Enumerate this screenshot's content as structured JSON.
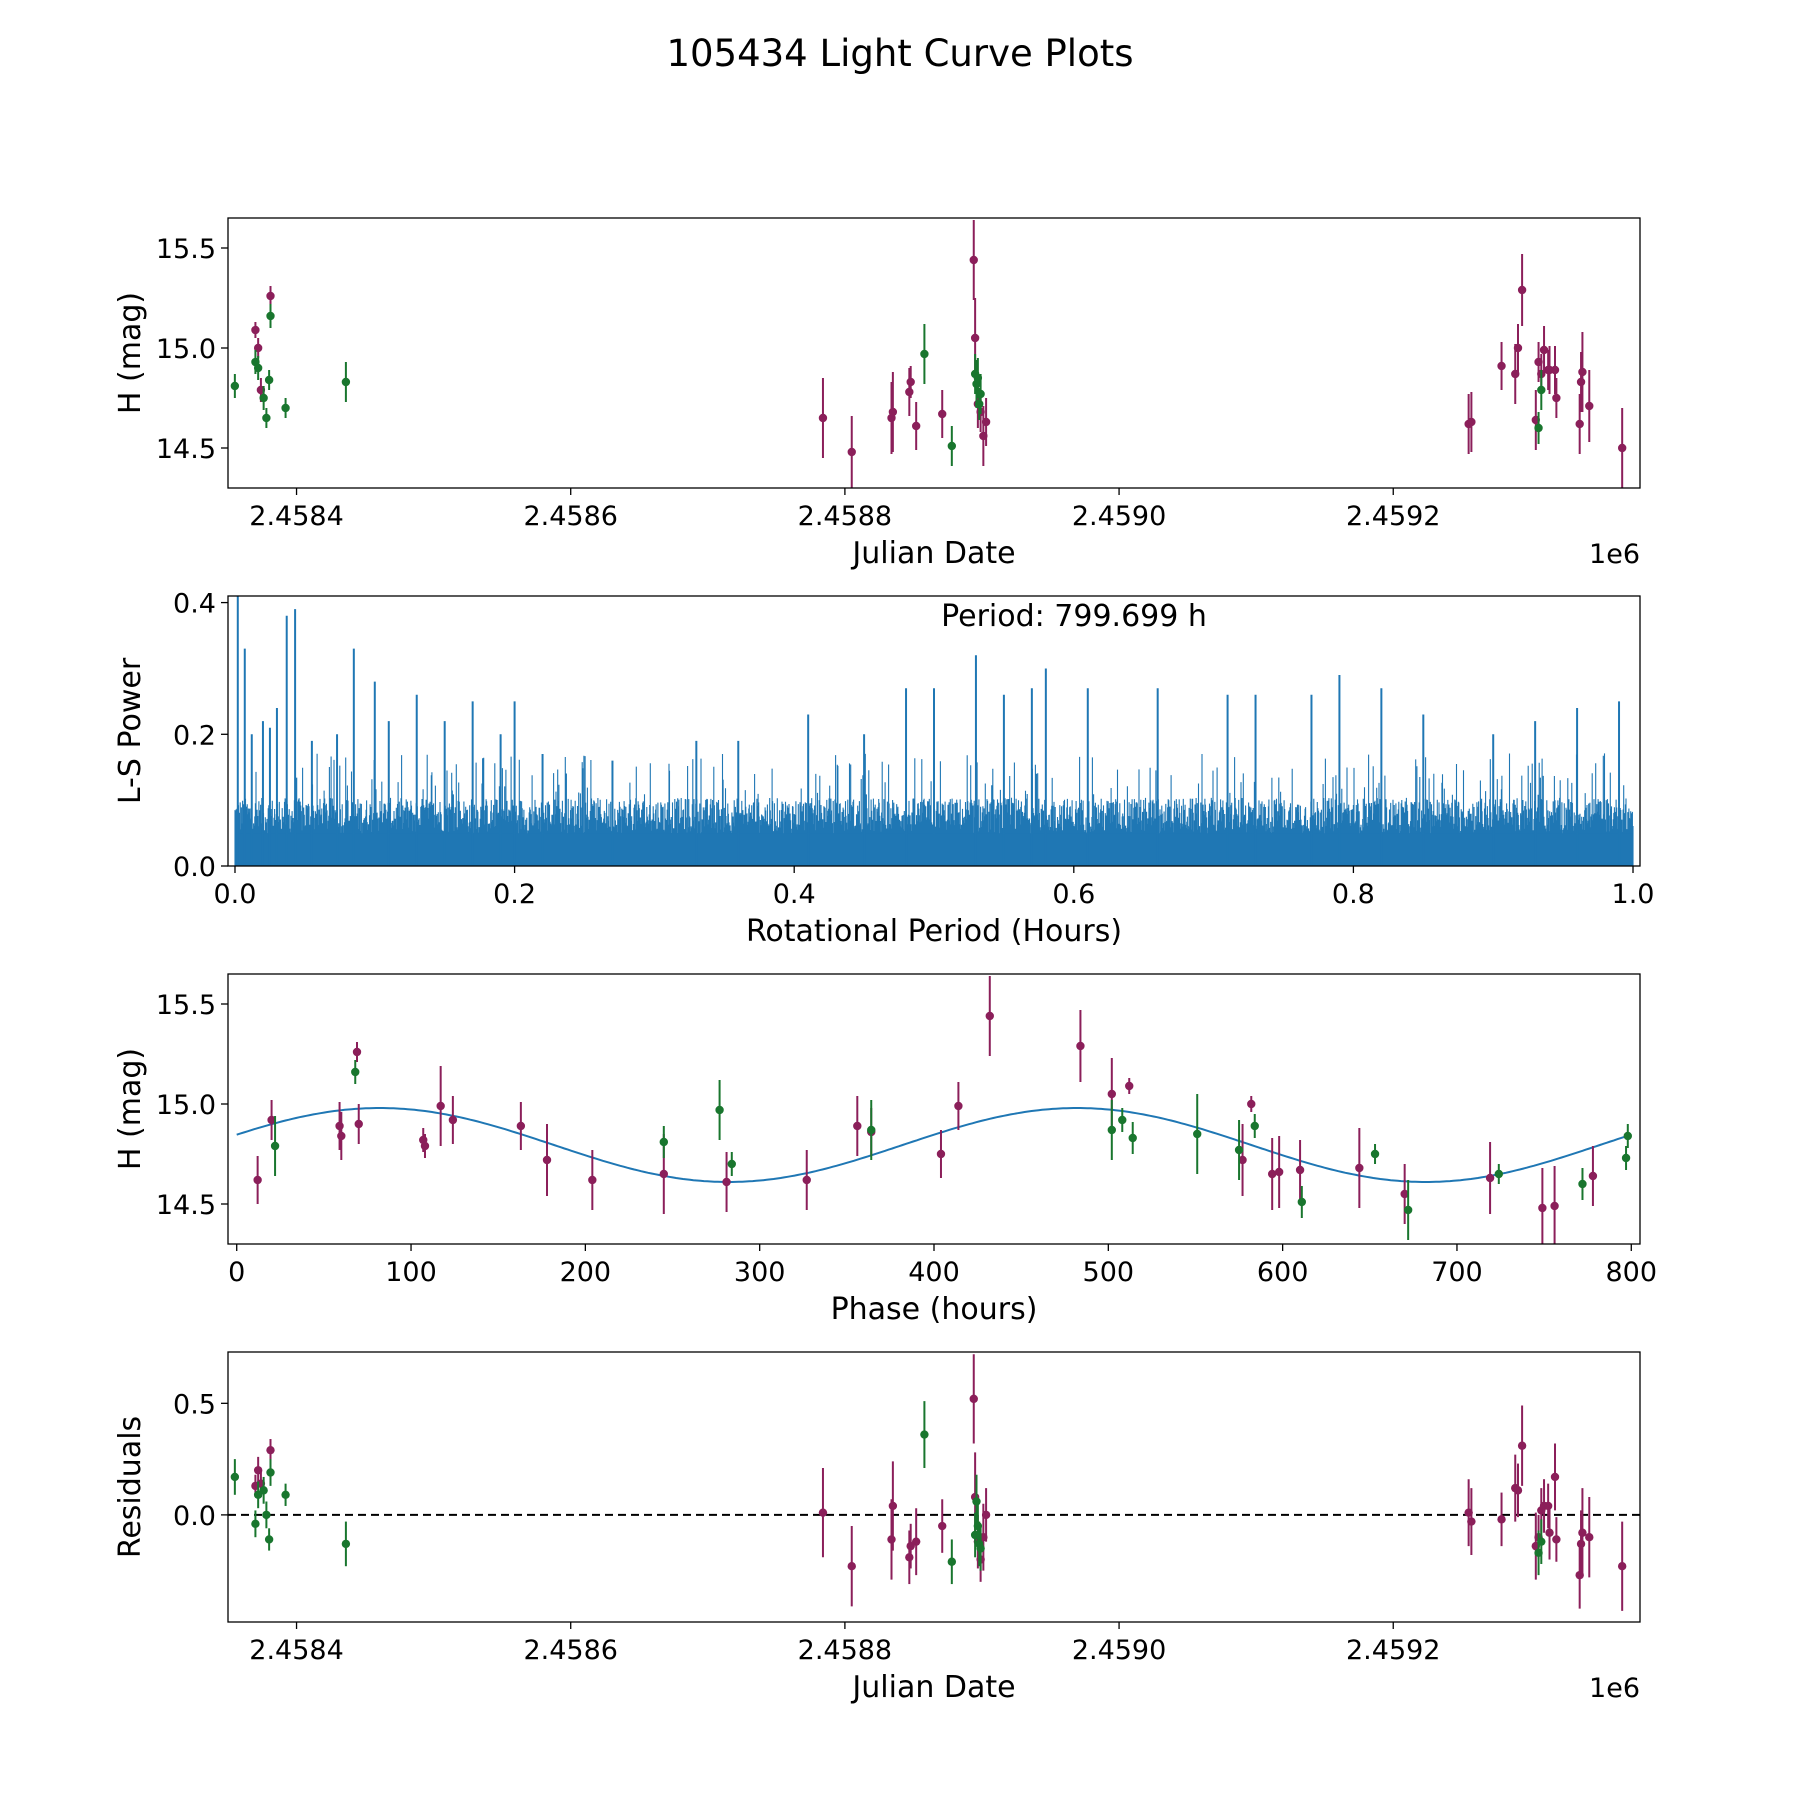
{
  "figure_title": "105434 Light Curve Plots",
  "colors": {
    "purple": "#8b1f5a",
    "green": "#19762e",
    "blue": "#1f77b4",
    "frame": "#000000"
  },
  "chart_data": [
    {
      "id": "lightcurve",
      "type": "scatter",
      "title": "",
      "xlabel": "Julian Date",
      "ylabel": "H (mag)",
      "offset_label": "1e6",
      "xlim": [
        2.45835,
        2.45938
      ],
      "ylim": [
        14.3,
        15.65
      ],
      "xticks": [
        2.4584,
        2.4586,
        2.4588,
        2.459,
        2.4592
      ],
      "xticklabels": [
        "2.4584",
        "2.4586",
        "2.4588",
        "2.4590",
        "2.4592"
      ],
      "yticks": [
        14.5,
        15.0,
        15.5
      ],
      "yticklabels": [
        "14.5",
        "15.0",
        "15.5"
      ],
      "series": [
        {
          "name": "purple",
          "color": "#8b1f5a",
          "x": [
            2.45837,
            2.458372,
            2.458374,
            2.458381,
            2.458784,
            2.458805,
            2.458834,
            2.458835,
            2.458847,
            2.458848,
            2.458852,
            2.458871,
            2.458894,
            2.458895,
            2.458897,
            2.458899,
            2.458901,
            2.458903,
            2.459255,
            2.459257,
            2.459279,
            2.459289,
            2.459291,
            2.459294,
            2.459304,
            2.459306,
            2.459308,
            2.45931,
            2.459313,
            2.459314,
            2.459318,
            2.459319,
            2.459336,
            2.459337,
            2.459338,
            2.459343,
            2.459367
          ],
          "y": [
            15.09,
            15.0,
            14.79,
            15.26,
            14.65,
            14.48,
            14.65,
            14.68,
            14.78,
            14.83,
            14.61,
            14.67,
            15.44,
            15.05,
            14.72,
            14.68,
            14.56,
            14.63,
            14.62,
            14.63,
            14.91,
            14.87,
            15.0,
            15.29,
            14.64,
            14.93,
            14.87,
            14.99,
            14.89,
            14.89,
            14.89,
            14.75,
            14.62,
            14.83,
            14.88,
            14.71,
            14.5
          ],
          "err": [
            0.04,
            0.05,
            0.06,
            0.05,
            0.2,
            0.18,
            0.18,
            0.2,
            0.12,
            0.08,
            0.12,
            0.12,
            0.2,
            0.2,
            0.12,
            0.1,
            0.15,
            0.12,
            0.15,
            0.15,
            0.12,
            0.15,
            0.12,
            0.18,
            0.15,
            0.1,
            0.1,
            0.12,
            0.1,
            0.12,
            0.12,
            0.1,
            0.15,
            0.15,
            0.2,
            0.18,
            0.2
          ]
        },
        {
          "name": "green",
          "color": "#19762e",
          "x": [
            2.458355,
            2.45837,
            2.458372,
            2.458376,
            2.458378,
            2.45838,
            2.458381,
            2.458392,
            2.458436,
            2.458858,
            2.458878,
            2.458895,
            2.458896,
            2.458897,
            2.458898,
            2.458899,
            2.459306,
            2.459308
          ],
          "y": [
            14.81,
            14.93,
            14.9,
            14.75,
            14.65,
            14.84,
            15.16,
            14.7,
            14.83,
            14.97,
            14.51,
            14.87,
            14.82,
            14.85,
            14.72,
            14.77,
            14.6,
            14.79
          ],
          "err": [
            0.06,
            0.06,
            0.06,
            0.06,
            0.05,
            0.05,
            0.06,
            0.05,
            0.1,
            0.15,
            0.1,
            0.1,
            0.12,
            0.1,
            0.08,
            0.1,
            0.08,
            0.1
          ]
        }
      ]
    },
    {
      "id": "periodogram",
      "type": "line",
      "title": "",
      "annotation": "Period: 799.699 h",
      "xlabel": "Rotational Period (Hours)",
      "ylabel": "L-S Power",
      "xlim": [
        -0.005,
        1.005
      ],
      "ylim": [
        0.0,
        0.41
      ],
      "xticks": [
        0.0,
        0.2,
        0.4,
        0.6,
        0.8,
        1.0
      ],
      "xticklabels": [
        "0.0",
        "0.2",
        "0.4",
        "0.6",
        "0.8",
        "1.0"
      ],
      "yticks": [
        0.0,
        0.2,
        0.4
      ],
      "yticklabels": [
        "0.0",
        "0.2",
        "0.4"
      ],
      "series": [
        {
          "name": "L-S power",
          "color": "#1f77b4",
          "x_range": [
            0.0,
            1.0
          ],
          "baseline_power": 0.09,
          "peaks": [
            [
              0.002,
              0.41
            ],
            [
              0.007,
              0.33
            ],
            [
              0.012,
              0.2
            ],
            [
              0.02,
              0.22
            ],
            [
              0.025,
              0.21
            ],
            [
              0.03,
              0.24
            ],
            [
              0.037,
              0.38
            ],
            [
              0.043,
              0.39
            ],
            [
              0.055,
              0.19
            ],
            [
              0.073,
              0.2
            ],
            [
              0.085,
              0.33
            ],
            [
              0.1,
              0.28
            ],
            [
              0.11,
              0.22
            ],
            [
              0.13,
              0.26
            ],
            [
              0.15,
              0.22
            ],
            [
              0.17,
              0.25
            ],
            [
              0.19,
              0.2
            ],
            [
              0.2,
              0.25
            ],
            [
              0.22,
              0.17
            ],
            [
              0.27,
              0.16
            ],
            [
              0.33,
              0.19
            ],
            [
              0.36,
              0.19
            ],
            [
              0.41,
              0.23
            ],
            [
              0.45,
              0.2
            ],
            [
              0.48,
              0.27
            ],
            [
              0.5,
              0.27
            ],
            [
              0.53,
              0.32
            ],
            [
              0.55,
              0.26
            ],
            [
              0.57,
              0.27
            ],
            [
              0.58,
              0.3
            ],
            [
              0.61,
              0.27
            ],
            [
              0.66,
              0.27
            ],
            [
              0.71,
              0.26
            ],
            [
              0.73,
              0.26
            ],
            [
              0.77,
              0.26
            ],
            [
              0.79,
              0.29
            ],
            [
              0.82,
              0.27
            ],
            [
              0.85,
              0.23
            ],
            [
              0.9,
              0.2
            ],
            [
              0.93,
              0.22
            ],
            [
              0.96,
              0.24
            ],
            [
              0.99,
              0.25
            ]
          ]
        }
      ]
    },
    {
      "id": "phasefold",
      "type": "scatter",
      "title": "",
      "xlabel": "Phase (hours)",
      "ylabel": "H (mag)",
      "xlim": [
        -5,
        805
      ],
      "ylim": [
        14.3,
        15.65
      ],
      "xticks": [
        0,
        100,
        200,
        300,
        400,
        500,
        600,
        700,
        800
      ],
      "xticklabels": [
        "0",
        "100",
        "200",
        "300",
        "400",
        "500",
        "600",
        "700",
        "800"
      ],
      "yticks": [
        14.5,
        15.0,
        15.5
      ],
      "yticklabels": [
        "14.5",
        "15.0",
        "15.5"
      ],
      "fit": {
        "color": "#1f77b4",
        "mean": 14.795,
        "amplitude": 0.185,
        "period_hours": 400,
        "phase_peak_hours": 82
      },
      "series": [
        {
          "name": "purple",
          "color": "#8b1f5a",
          "x": [
            12,
            20,
            59,
            60,
            69,
            70,
            107,
            108,
            117,
            124,
            163,
            178,
            204,
            245,
            281,
            327,
            356,
            364,
            404,
            414,
            432,
            484,
            502,
            512,
            577,
            582,
            594,
            598,
            610,
            644,
            670,
            719,
            749,
            756,
            778
          ],
          "y": [
            14.62,
            14.92,
            14.89,
            14.84,
            15.26,
            14.9,
            14.82,
            14.79,
            14.99,
            14.92,
            14.89,
            14.72,
            14.62,
            14.65,
            14.61,
            14.62,
            14.89,
            14.86,
            14.75,
            14.99,
            15.44,
            15.29,
            15.05,
            15.09,
            14.72,
            15.0,
            14.65,
            14.66,
            14.67,
            14.68,
            14.55,
            14.63,
            14.48,
            14.49,
            14.64
          ],
          "err": [
            0.12,
            0.1,
            0.12,
            0.12,
            0.05,
            0.1,
            0.06,
            0.06,
            0.2,
            0.12,
            0.12,
            0.18,
            0.15,
            0.2,
            0.15,
            0.15,
            0.15,
            0.12,
            0.12,
            0.12,
            0.2,
            0.18,
            0.18,
            0.04,
            0.18,
            0.04,
            0.18,
            0.18,
            0.15,
            0.2,
            0.15,
            0.18,
            0.2,
            0.2,
            0.15
          ]
        },
        {
          "name": "green",
          "color": "#19762e",
          "x": [
            22,
            68,
            245,
            277,
            284,
            364,
            502,
            508,
            514,
            551,
            575,
            584,
            611,
            653,
            672,
            724,
            772,
            797,
            798
          ],
          "y": [
            14.79,
            15.16,
            14.81,
            14.97,
            14.7,
            14.87,
            14.87,
            14.92,
            14.83,
            14.85,
            14.77,
            14.89,
            14.51,
            14.75,
            14.47,
            14.65,
            14.6,
            14.73,
            14.84
          ],
          "err": [
            0.15,
            0.06,
            0.08,
            0.15,
            0.06,
            0.15,
            0.15,
            0.06,
            0.08,
            0.2,
            0.15,
            0.06,
            0.08,
            0.05,
            0.15,
            0.05,
            0.08,
            0.06,
            0.06
          ]
        }
      ]
    },
    {
      "id": "residuals",
      "type": "scatter",
      "title": "",
      "xlabel": "Julian Date",
      "ylabel": "Residuals",
      "offset_label": "1e6",
      "xlim": [
        2.45835,
        2.45938
      ],
      "ylim": [
        -0.48,
        0.73
      ],
      "zero_line": 0.0,
      "xticks": [
        2.4584,
        2.4586,
        2.4588,
        2.459,
        2.4592
      ],
      "xticklabels": [
        "2.4584",
        "2.4586",
        "2.4588",
        "2.4590",
        "2.4592"
      ],
      "yticks": [
        0.0,
        0.5
      ],
      "yticklabels": [
        "0.0",
        "0.5"
      ],
      "series": [
        {
          "name": "purple",
          "color": "#8b1f5a",
          "x": [
            2.45837,
            2.458372,
            2.458374,
            2.458381,
            2.458784,
            2.458805,
            2.458834,
            2.458835,
            2.458847,
            2.458848,
            2.458852,
            2.458871,
            2.458894,
            2.458895,
            2.458897,
            2.458899,
            2.458901,
            2.458903,
            2.459255,
            2.459257,
            2.459279,
            2.459289,
            2.459291,
            2.459294,
            2.459304,
            2.459306,
            2.459308,
            2.45931,
            2.459313,
            2.459314,
            2.459318,
            2.459319,
            2.459336,
            2.459337,
            2.459338,
            2.459343,
            2.459367
          ],
          "y": [
            0.13,
            0.2,
            0.14,
            0.29,
            0.01,
            -0.23,
            -0.11,
            0.04,
            -0.19,
            -0.14,
            -0.12,
            -0.05,
            0.52,
            0.08,
            -0.12,
            -0.2,
            -0.1,
            0.0,
            0.01,
            -0.03,
            -0.02,
            0.12,
            0.11,
            0.31,
            -0.14,
            -0.1,
            0.02,
            0.04,
            0.04,
            -0.08,
            0.17,
            -0.11,
            -0.27,
            -0.13,
            -0.08,
            -0.1,
            -0.23
          ],
          "err": [
            0.05,
            0.06,
            0.06,
            0.05,
            0.2,
            0.18,
            0.18,
            0.2,
            0.12,
            0.1,
            0.15,
            0.12,
            0.2,
            0.2,
            0.12,
            0.1,
            0.15,
            0.12,
            0.15,
            0.15,
            0.12,
            0.15,
            0.12,
            0.18,
            0.15,
            0.1,
            0.1,
            0.12,
            0.1,
            0.12,
            0.15,
            0.1,
            0.15,
            0.15,
            0.2,
            0.18,
            0.2
          ]
        },
        {
          "name": "green",
          "color": "#19762e",
          "x": [
            2.458355,
            2.45837,
            2.458372,
            2.458376,
            2.458378,
            2.45838,
            2.458381,
            2.458392,
            2.458436,
            2.458858,
            2.458878,
            2.458895,
            2.458896,
            2.458897,
            2.458898,
            2.458899,
            2.459306,
            2.459308
          ],
          "y": [
            0.17,
            -0.04,
            0.09,
            0.11,
            0.0,
            -0.11,
            0.19,
            0.09,
            -0.13,
            0.36,
            -0.21,
            -0.09,
            0.06,
            -0.05,
            -0.13,
            -0.15,
            -0.17,
            -0.12
          ],
          "err": [
            0.08,
            0.06,
            0.06,
            0.06,
            0.06,
            0.05,
            0.06,
            0.05,
            0.1,
            0.15,
            0.1,
            0.1,
            0.12,
            0.1,
            0.1,
            0.1,
            0.1,
            0.1
          ]
        }
      ]
    }
  ]
}
